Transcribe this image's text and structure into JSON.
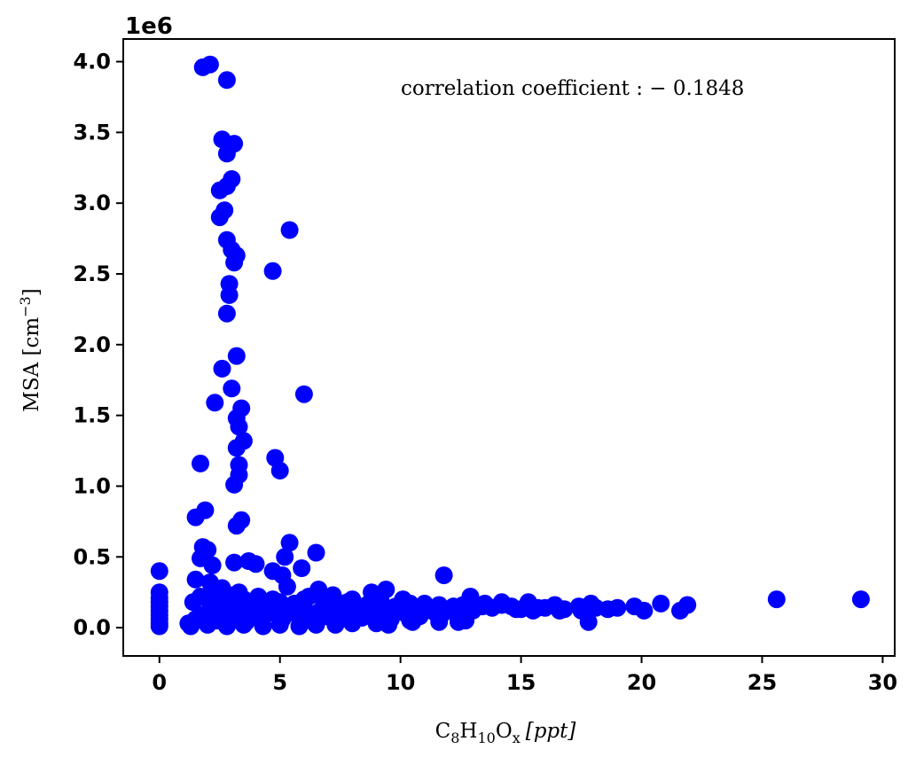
{
  "chart_data": {
    "type": "scatter",
    "title": "",
    "xlabel": {
      "base": "C",
      "sub1": "8",
      "mid": "H",
      "sub2": "10",
      "end": "O",
      "sub3": "x",
      "unit": "[ppt]"
    },
    "ylabel": {
      "text": "MSA [cm",
      "sup": "−3",
      "close": "]"
    },
    "y_scale_label": "1e6",
    "annotation": "correlation coefficient : − 0.1848",
    "xlim": [
      -1.5,
      30.5
    ],
    "ylim": [
      -0.2,
      4.16
    ],
    "x_ticks": [
      0,
      5,
      10,
      15,
      20,
      25,
      30
    ],
    "x_tick_labels": [
      "0",
      "5",
      "10",
      "15",
      "20",
      "25",
      "30"
    ],
    "y_ticks": [
      0.0,
      0.5,
      1.0,
      1.5,
      2.0,
      2.5,
      3.0,
      3.5,
      4.0
    ],
    "y_tick_labels": [
      "0.0",
      "0.5",
      "1.0",
      "1.5",
      "2.0",
      "2.5",
      "3.0",
      "3.5",
      "4.0"
    ],
    "grid": false,
    "marker_color": "#0000ff",
    "series": [
      {
        "points": [
          [
            0,
            0.4
          ],
          [
            0,
            0.25
          ],
          [
            0,
            0.21
          ],
          [
            0,
            0.18
          ],
          [
            0,
            0.15
          ],
          [
            0,
            0.12
          ],
          [
            0,
            0.09
          ],
          [
            0,
            0.06
          ],
          [
            0,
            0.03
          ],
          [
            0,
            0.01
          ],
          [
            1.8,
            3.96
          ],
          [
            2.1,
            3.98
          ],
          [
            2.8,
            3.87
          ],
          [
            2.6,
            3.45
          ],
          [
            3.1,
            3.42
          ],
          [
            2.8,
            3.35
          ],
          [
            3.0,
            3.17
          ],
          [
            2.8,
            3.12
          ],
          [
            2.5,
            3.09
          ],
          [
            2.7,
            2.95
          ],
          [
            2.5,
            2.9
          ],
          [
            2.8,
            2.74
          ],
          [
            3.0,
            2.67
          ],
          [
            3.2,
            2.63
          ],
          [
            3.1,
            2.58
          ],
          [
            5.4,
            2.81
          ],
          [
            4.7,
            2.52
          ],
          [
            2.9,
            2.43
          ],
          [
            2.9,
            2.35
          ],
          [
            2.8,
            2.22
          ],
          [
            3.2,
            1.92
          ],
          [
            2.6,
            1.83
          ],
          [
            3.0,
            1.69
          ],
          [
            6.0,
            1.65
          ],
          [
            2.3,
            1.59
          ],
          [
            3.4,
            1.55
          ],
          [
            3.2,
            1.48
          ],
          [
            3.3,
            1.42
          ],
          [
            3.5,
            1.32
          ],
          [
            3.2,
            1.27
          ],
          [
            4.8,
            1.2
          ],
          [
            1.7,
            1.16
          ],
          [
            3.3,
            1.15
          ],
          [
            5.0,
            1.11
          ],
          [
            3.3,
            1.08
          ],
          [
            3.1,
            1.01
          ],
          [
            1.9,
            0.83
          ],
          [
            1.5,
            0.78
          ],
          [
            3.4,
            0.76
          ],
          [
            3.2,
            0.72
          ],
          [
            5.4,
            0.6
          ],
          [
            1.8,
            0.57
          ],
          [
            2.0,
            0.55
          ],
          [
            6.5,
            0.53
          ],
          [
            5.2,
            0.5
          ],
          [
            1.7,
            0.49
          ],
          [
            3.1,
            0.46
          ],
          [
            3.7,
            0.47
          ],
          [
            4.0,
            0.45
          ],
          [
            2.2,
            0.44
          ],
          [
            5.9,
            0.42
          ],
          [
            4.7,
            0.4
          ],
          [
            5.1,
            0.37
          ],
          [
            11.8,
            0.37
          ],
          [
            1.5,
            0.34
          ],
          [
            2.1,
            0.32
          ],
          [
            2.6,
            0.28
          ],
          [
            3.3,
            0.25
          ],
          [
            4.1,
            0.22
          ],
          [
            5.3,
            0.29
          ],
          [
            6.6,
            0.27
          ],
          [
            7.2,
            0.23
          ],
          [
            8.8,
            0.25
          ],
          [
            9.4,
            0.27
          ],
          [
            6.0,
            0.2
          ],
          [
            7.8,
            0.18
          ],
          [
            10.1,
            0.2
          ],
          [
            11.0,
            0.17
          ],
          [
            12.9,
            0.22
          ],
          [
            13.5,
            0.17
          ],
          [
            14.2,
            0.18
          ],
          [
            15.3,
            0.18
          ],
          [
            15.7,
            0.14
          ],
          [
            16.4,
            0.16
          ],
          [
            16.6,
            0.12
          ],
          [
            17.4,
            0.15
          ],
          [
            17.9,
            0.17
          ],
          [
            18.1,
            0.14
          ],
          [
            18.6,
            0.13
          ],
          [
            17.8,
            0.04
          ],
          [
            19.7,
            0.15
          ],
          [
            20.1,
            0.12
          ],
          [
            20.8,
            0.17
          ],
          [
            21.6,
            0.12
          ],
          [
            21.9,
            0.16
          ],
          [
            25.6,
            0.2
          ],
          [
            29.1,
            0.2
          ],
          [
            12.4,
            0.04
          ],
          [
            11.6,
            0.04
          ],
          [
            10.4,
            0.05
          ],
          [
            1.2,
            0.03
          ],
          [
            1.5,
            0.06
          ],
          [
            1.8,
            0.09
          ],
          [
            2.1,
            0.12
          ],
          [
            2.4,
            0.05
          ],
          [
            2.7,
            0.15
          ],
          [
            3.0,
            0.08
          ],
          [
            3.3,
            0.11
          ],
          [
            3.6,
            0.04
          ],
          [
            3.9,
            0.13
          ],
          [
            4.2,
            0.07
          ],
          [
            4.5,
            0.1
          ],
          [
            4.8,
            0.16
          ],
          [
            5.1,
            0.06
          ],
          [
            5.4,
            0.12
          ],
          [
            5.7,
            0.09
          ],
          [
            6.0,
            0.14
          ],
          [
            6.3,
            0.05
          ],
          [
            6.6,
            0.11
          ],
          [
            6.9,
            0.08
          ],
          [
            7.2,
            0.13
          ],
          [
            7.5,
            0.06
          ],
          [
            7.8,
            0.1
          ],
          [
            8.1,
            0.12
          ],
          [
            8.4,
            0.07
          ],
          [
            8.7,
            0.14
          ],
          [
            9.0,
            0.09
          ],
          [
            9.3,
            0.11
          ],
          [
            9.6,
            0.06
          ],
          [
            9.9,
            0.13
          ],
          [
            10.2,
            0.1
          ],
          [
            10.5,
            0.12
          ],
          [
            10.8,
            0.08
          ],
          [
            11.1,
            0.14
          ],
          [
            11.4,
            0.11
          ],
          [
            11.7,
            0.09
          ],
          [
            12.0,
            0.13
          ],
          [
            12.3,
            0.1
          ],
          [
            12.6,
            0.16
          ],
          [
            13.0,
            0.12
          ],
          [
            13.4,
            0.15
          ],
          [
            13.8,
            0.14
          ],
          [
            14.2,
            0.16
          ],
          [
            14.6,
            0.15
          ],
          [
            15.0,
            0.13
          ],
          [
            15.5,
            0.12
          ],
          [
            16.0,
            0.14
          ],
          [
            16.8,
            0.13
          ],
          [
            17.5,
            0.12
          ],
          [
            19.0,
            0.14
          ],
          [
            1.4,
            0.18
          ],
          [
            1.7,
            0.22
          ],
          [
            2.0,
            0.2
          ],
          [
            2.3,
            0.25
          ],
          [
            2.6,
            0.19
          ],
          [
            2.9,
            0.23
          ],
          [
            3.2,
            0.18
          ],
          [
            3.5,
            0.2
          ],
          [
            3.8,
            0.17
          ],
          [
            4.1,
            0.19
          ],
          [
            4.4,
            0.16
          ],
          [
            4.7,
            0.2
          ],
          [
            5.0,
            0.18
          ],
          [
            5.6,
            0.17
          ],
          [
            6.2,
            0.22
          ],
          [
            6.8,
            0.19
          ],
          [
            7.4,
            0.17
          ],
          [
            8.0,
            0.2
          ],
          [
            8.6,
            0.16
          ],
          [
            9.2,
            0.18
          ],
          [
            9.8,
            0.15
          ],
          [
            10.4,
            0.17
          ],
          [
            11.0,
            0.14
          ],
          [
            11.6,
            0.16
          ],
          [
            12.2,
            0.15
          ],
          [
            1.3,
            0.01
          ],
          [
            2.0,
            0.02
          ],
          [
            2.8,
            0.01
          ],
          [
            3.5,
            0.02
          ],
          [
            4.3,
            0.01
          ],
          [
            5.0,
            0.02
          ],
          [
            5.8,
            0.01
          ],
          [
            6.5,
            0.02
          ],
          [
            7.3,
            0.02
          ],
          [
            8.0,
            0.03
          ],
          [
            9.0,
            0.03
          ],
          [
            9.5,
            0.02
          ],
          [
            10.5,
            0.04
          ],
          [
            12.7,
            0.05
          ],
          [
            14.8,
            0.13
          ]
        ]
      }
    ]
  }
}
